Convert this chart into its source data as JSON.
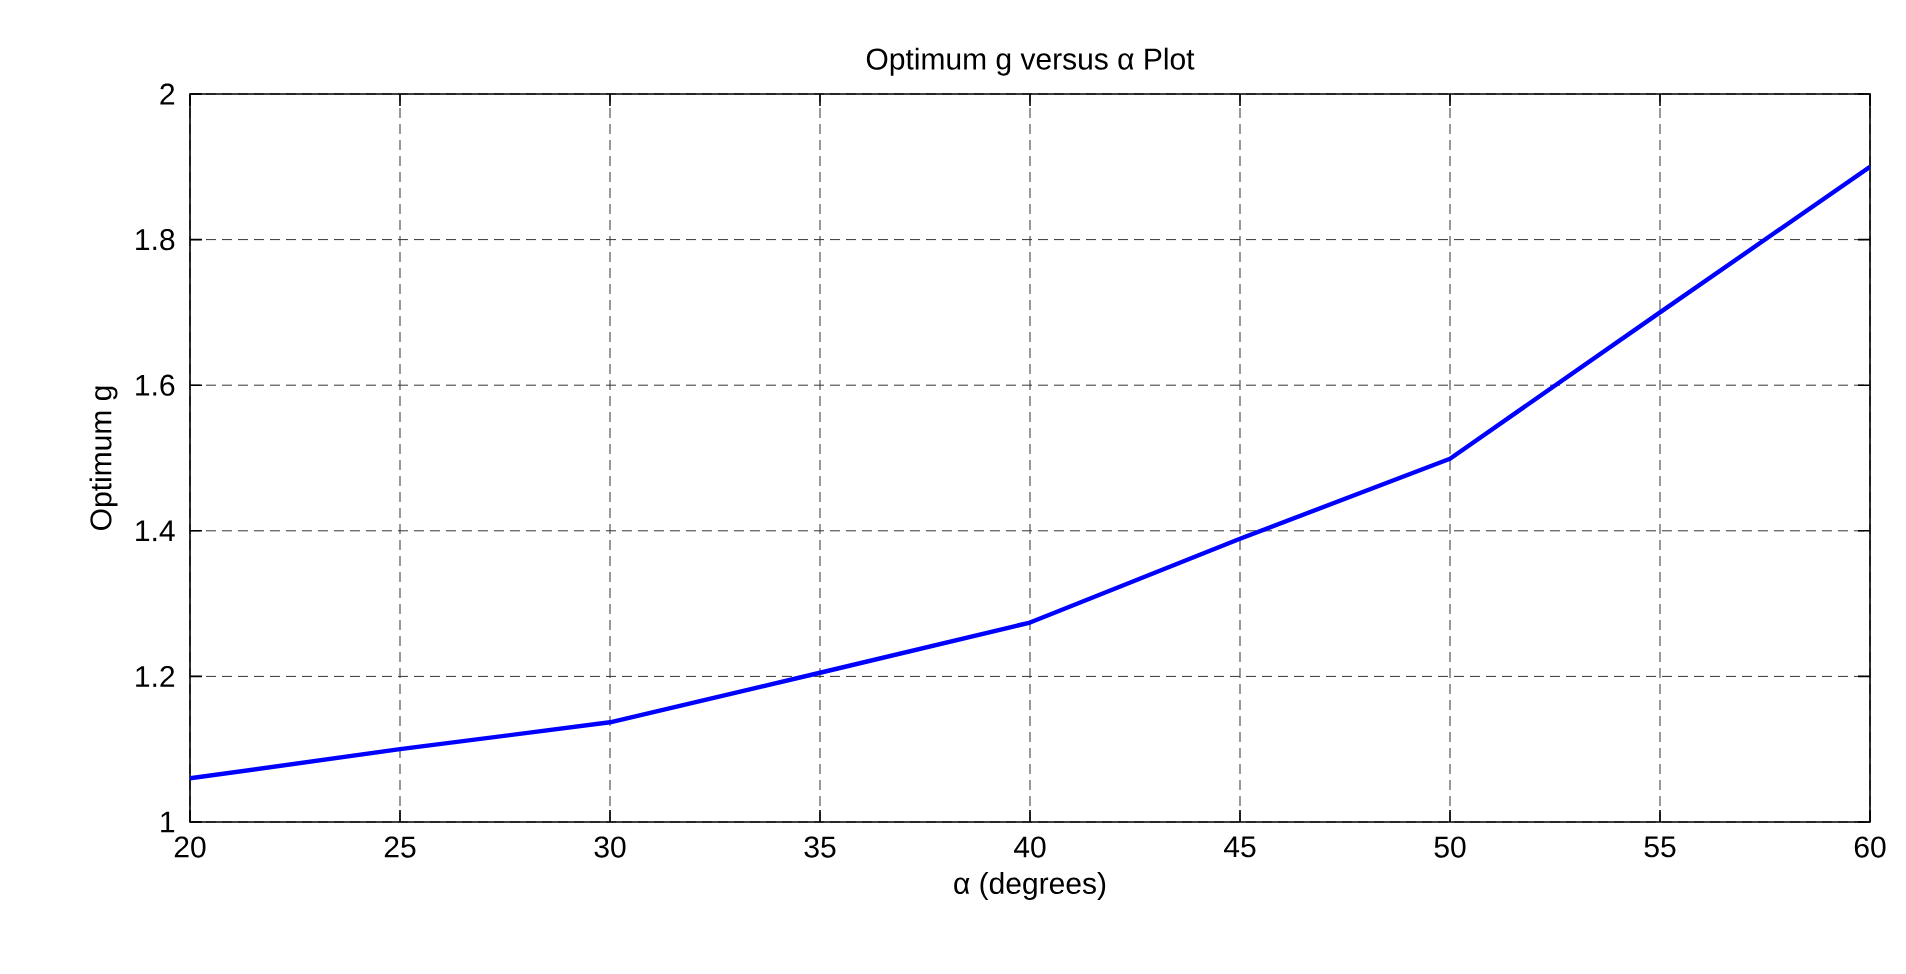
{
  "chart_data": {
    "type": "line",
    "title": "Optimum g versus α Plot",
    "xlabel": "α (degrees)",
    "ylabel": "Optimum g",
    "x": [
      20,
      25,
      30,
      35,
      40,
      45,
      50,
      55,
      60
    ],
    "series": [
      {
        "color": "#0000ff",
        "values": [
          1.06,
          1.1,
          1.137,
          1.205,
          1.274,
          1.389,
          1.499,
          1.7,
          1.9
        ]
      }
    ],
    "xlim": [
      20,
      60
    ],
    "ylim": [
      1,
      2
    ],
    "xticks": [
      20,
      25,
      30,
      35,
      40,
      45,
      50,
      55,
      60
    ],
    "yticks": [
      1,
      1.2,
      1.4,
      1.6,
      1.8,
      2
    ],
    "grid": true,
    "marker": "none",
    "line_style": "solid"
  }
}
